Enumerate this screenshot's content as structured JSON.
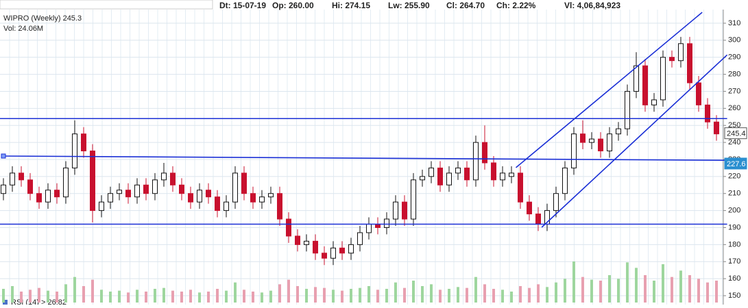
{
  "header": {
    "items": [
      "Dt: 15-07-19",
      "Op: 260.00",
      "Hi: 274.15",
      "Lw: 255.90",
      "Cl: 264.70",
      "Ch: 2.22%",
      "Vl: 4,06,84,923"
    ]
  },
  "chart_data": {
    "type": "candlestick",
    "title": "WIPRO (Weekly) 245.3",
    "subtitle": "Vol: 24.06M",
    "footer": "RSI (14) > 26.82",
    "ylim": [
      150,
      316
    ],
    "yticks": [
      150,
      160,
      170,
      180,
      190,
      200,
      210,
      220,
      230,
      240,
      250,
      260,
      270,
      280,
      290,
      300,
      310
    ],
    "grid": true,
    "up_color": "#ffffff",
    "down_color": "#c8102e",
    "volume_up_color": "#9ed69e",
    "volume_down_color": "#e8a0b0",
    "vlim": [
      0,
      60
    ],
    "line_color": "#1a2fd6",
    "open": [
      210,
      215,
      222,
      218,
      210,
      205,
      212,
      208,
      225,
      245,
      235,
      200,
      205,
      210,
      212,
      208,
      215,
      210,
      218,
      222,
      215,
      210,
      205,
      212,
      208,
      200,
      205,
      222,
      210,
      205,
      208,
      210,
      195,
      185,
      180,
      182,
      175,
      172,
      178,
      175,
      180,
      187,
      192,
      190,
      195,
      205,
      195,
      218,
      220,
      225,
      215,
      222,
      225,
      218,
      240,
      228,
      218,
      220,
      222,
      205,
      198,
      192,
      200,
      210,
      225,
      245,
      240,
      242,
      235,
      245,
      248,
      270,
      285,
      262,
      265,
      290,
      288,
      298,
      275,
      262,
      252
    ],
    "high": [
      219,
      226,
      226,
      222,
      214,
      216,
      216,
      229,
      253,
      249,
      239,
      209,
      214,
      216,
      216,
      219,
      219,
      222,
      228,
      226,
      219,
      214,
      216,
      216,
      212,
      209,
      226,
      226,
      214,
      212,
      214,
      214,
      199,
      189,
      186,
      186,
      179,
      182,
      182,
      184,
      191,
      196,
      196,
      199,
      209,
      209,
      222,
      224,
      229,
      229,
      226,
      229,
      229,
      244,
      250,
      232,
      226,
      226,
      226,
      209,
      202,
      204,
      214,
      229,
      249,
      253,
      246,
      246,
      249,
      252,
      274,
      293,
      289,
      269,
      294,
      294,
      302,
      302,
      279,
      266,
      256
    ],
    "low": [
      206,
      211,
      214,
      206,
      201,
      201,
      204,
      204,
      221,
      231,
      193,
      196,
      201,
      206,
      204,
      204,
      206,
      206,
      214,
      211,
      206,
      201,
      201,
      204,
      196,
      196,
      201,
      206,
      201,
      201,
      204,
      191,
      181,
      176,
      176,
      171,
      168,
      168,
      171,
      171,
      176,
      183,
      186,
      186,
      191,
      191,
      191,
      214,
      216,
      211,
      211,
      218,
      214,
      214,
      224,
      214,
      214,
      216,
      201,
      194,
      188,
      188,
      196,
      206,
      221,
      236,
      236,
      231,
      231,
      241,
      244,
      266,
      258,
      258,
      261,
      284,
      284,
      271,
      258,
      248,
      241
    ],
    "close": [
      215,
      222,
      218,
      210,
      205,
      212,
      208,
      225,
      245,
      235,
      200,
      205,
      210,
      212,
      208,
      215,
      210,
      218,
      222,
      215,
      210,
      205,
      212,
      208,
      200,
      205,
      222,
      210,
      205,
      208,
      210,
      195,
      185,
      180,
      182,
      175,
      172,
      178,
      175,
      180,
      187,
      192,
      190,
      195,
      205,
      195,
      218,
      220,
      225,
      215,
      222,
      225,
      218,
      240,
      228,
      218,
      222,
      222,
      205,
      198,
      192,
      200,
      210,
      225,
      245,
      240,
      242,
      235,
      245,
      248,
      270,
      285,
      262,
      265,
      290,
      288,
      298,
      275,
      262,
      252,
      245
    ],
    "volume": [
      15,
      18,
      12,
      14,
      16,
      13,
      12,
      20,
      28,
      18,
      25,
      14,
      12,
      13,
      11,
      14,
      12,
      15,
      16,
      13,
      12,
      14,
      11,
      12,
      15,
      13,
      22,
      14,
      12,
      11,
      13,
      20,
      25,
      18,
      15,
      17,
      16,
      14,
      13,
      15,
      16,
      18,
      14,
      15,
      22,
      16,
      24,
      18,
      20,
      14,
      15,
      17,
      16,
      28,
      20,
      15,
      14,
      12,
      18,
      16,
      20,
      17,
      22,
      26,
      45,
      28,
      25,
      24,
      30,
      26,
      44,
      38,
      30,
      24,
      42,
      28,
      35,
      30,
      26,
      22,
      24
    ],
    "trendlines": [
      {
        "x": [
          -0.4,
          81.2
        ],
        "y": [
          254,
          254
        ]
      },
      {
        "x": [
          0,
          81.2
        ],
        "y": [
          232,
          229.5
        ]
      },
      {
        "x": [
          -0.4,
          81.2
        ],
        "y": [
          192,
          192
        ]
      },
      {
        "x": [
          60.4,
          81.2
        ],
        "y": [
          190.2,
          291.4
        ]
      },
      {
        "x": [
          57.5,
          78.4
        ],
        "y": [
          225.2,
          316.4
        ]
      }
    ],
    "price_markers": [
      245.4,
      227.6
    ]
  }
}
